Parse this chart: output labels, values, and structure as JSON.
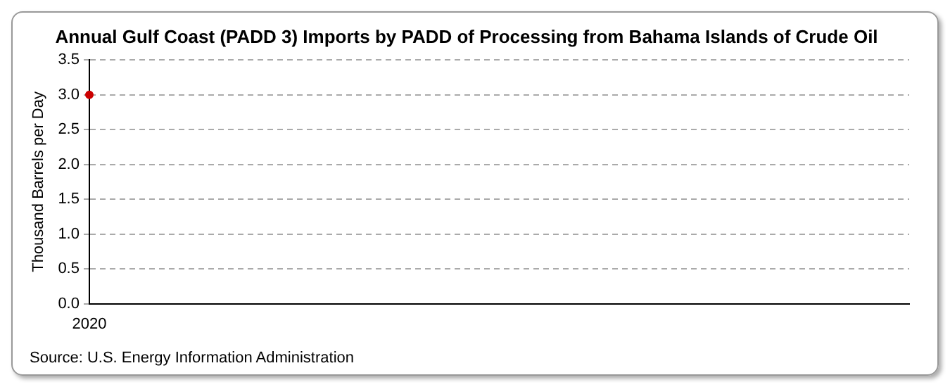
{
  "chart_data": {
    "type": "line",
    "title": "Annual Gulf Coast (PADD 3) Imports by PADD of Processing from Bahama Islands of Crude Oil",
    "ylabel": "Thousand Barrels per Day",
    "categories": [
      "2020"
    ],
    "series": [
      {
        "color": "#cc0000",
        "values": [
          3.0
        ]
      }
    ],
    "ylim": [
      0,
      3.5
    ],
    "yticks": [
      {
        "value": 0,
        "label": "0.0"
      },
      {
        "value": 0.5,
        "label": "0.5"
      },
      {
        "value": 1,
        "label": "1.0"
      },
      {
        "value": 1.5,
        "label": "1.5"
      },
      {
        "value": 2,
        "label": "2.0"
      },
      {
        "value": 2.5,
        "label": "2.5"
      },
      {
        "value": 3,
        "label": "3.0"
      },
      {
        "value": 3.5,
        "label": "3.5"
      }
    ],
    "grid": "y",
    "legend": false,
    "marker": "circle",
    "annotations": [
      "Source: U.S. Energy Information Administration"
    ]
  }
}
